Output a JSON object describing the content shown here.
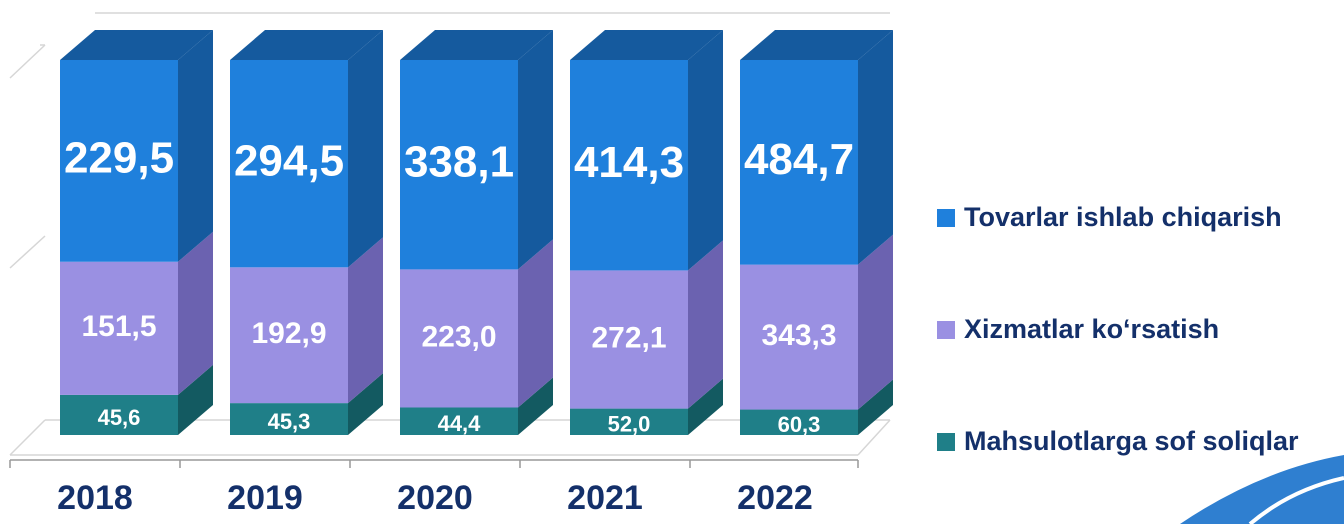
{
  "chart_data": {
    "type": "bar",
    "stacked": "percent",
    "categories": [
      "2018",
      "2019",
      "2020",
      "2021",
      "2022"
    ],
    "series": [
      {
        "name": "Mahsulotlarga sof soliqlar",
        "color": "#1f7f88",
        "side_color": "#135a61",
        "values": [
          45.6,
          45.3,
          44.4,
          52.0,
          60.3
        ],
        "value_labels": [
          "45,6",
          "45,3",
          "44,4",
          "52,0",
          "60,3"
        ]
      },
      {
        "name": "Xizmatlar ko‘rsatish",
        "color": "#9a90e2",
        "side_color": "#6b62b0",
        "values": [
          151.5,
          192.9,
          223.0,
          272.1,
          343.3
        ],
        "value_labels": [
          "151,5",
          "192,9",
          "223,0",
          "272,1",
          "343,3"
        ]
      },
      {
        "name": "Tovarlar ishlab chiqarish",
        "color": "#1f80dc",
        "side_color": "#155a9e",
        "values": [
          229.5,
          294.5,
          338.1,
          414.3,
          484.7
        ],
        "value_labels": [
          "229,5",
          "294,5",
          "338,1",
          "414,3",
          "484,7"
        ]
      }
    ]
  }
}
